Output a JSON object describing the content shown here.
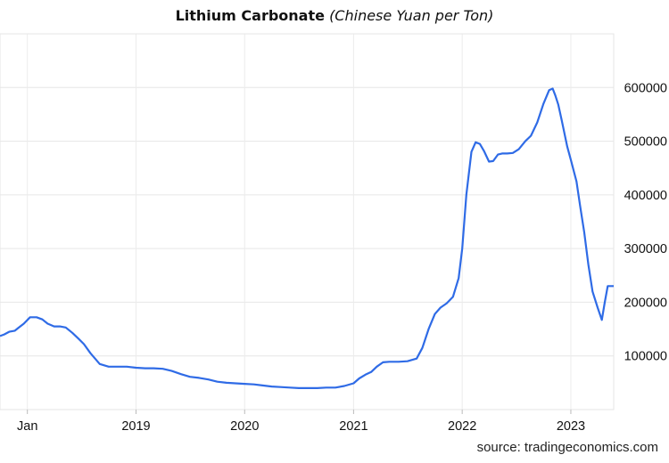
{
  "header": {
    "title": "Lithium Carbonate",
    "subtitle": "(Chinese Yuan per Ton)"
  },
  "footer": {
    "source": "source: tradingeconomics.com"
  },
  "chart_data": {
    "type": "line",
    "title": "Lithium Carbonate",
    "subtitle": "(Chinese Yuan per Ton)",
    "xlabel": "",
    "ylabel": "",
    "ylim": [
      0,
      700000
    ],
    "xlim": [
      "2017-10-01",
      "2023-05-25"
    ],
    "y_axis_position": "right",
    "grid": true,
    "line_color": "#2f6be6",
    "y_ticks": [
      {
        "value": 100000,
        "label": "100000"
      },
      {
        "value": 200000,
        "label": "200000"
      },
      {
        "value": 300000,
        "label": "300000"
      },
      {
        "value": 400000,
        "label": "400000"
      },
      {
        "value": 500000,
        "label": "500000"
      },
      {
        "value": 600000,
        "label": "600000"
      }
    ],
    "x_ticks": [
      {
        "date": "2018-01-01",
        "label": "Jan"
      },
      {
        "date": "2019-01-01",
        "label": "2019"
      },
      {
        "date": "2020-01-01",
        "label": "2020"
      },
      {
        "date": "2021-01-01",
        "label": "2021"
      },
      {
        "date": "2022-01-01",
        "label": "2022"
      },
      {
        "date": "2023-01-01",
        "label": "2023"
      }
    ],
    "series": [
      {
        "x": [
          "2017-10-01",
          "2017-10-15",
          "2017-11-01",
          "2017-11-20",
          "2017-12-01",
          "2017-12-20",
          "2018-01-10",
          "2018-02-01",
          "2018-02-20",
          "2018-03-10",
          "2018-04-01",
          "2018-04-20",
          "2018-05-10",
          "2018-06-01",
          "2018-06-20",
          "2018-07-10",
          "2018-08-01",
          "2018-09-01",
          "2018-10-01",
          "2018-11-01",
          "2018-12-01",
          "2019-01-01",
          "2019-02-01",
          "2019-03-01",
          "2019-04-01",
          "2019-05-01",
          "2019-06-01",
          "2019-07-01",
          "2019-08-01",
          "2019-09-01",
          "2019-10-01",
          "2019-11-01",
          "2019-12-01",
          "2020-01-01",
          "2020-02-01",
          "2020-03-01",
          "2020-04-01",
          "2020-05-01",
          "2020-06-01",
          "2020-07-01",
          "2020-08-01",
          "2020-09-01",
          "2020-10-01",
          "2020-11-01",
          "2020-12-01",
          "2021-01-01",
          "2021-01-20",
          "2021-02-10",
          "2021-03-01",
          "2021-03-20",
          "2021-04-10",
          "2021-05-01",
          "2021-06-01",
          "2021-07-01",
          "2021-08-01",
          "2021-08-20",
          "2021-09-10",
          "2021-10-01",
          "2021-10-20",
          "2021-11-10",
          "2021-12-01",
          "2021-12-20",
          "2022-01-01",
          "2022-01-15",
          "2022-02-01",
          "2022-02-15",
          "2022-03-01",
          "2022-03-15",
          "2022-04-01",
          "2022-04-15",
          "2022-05-01",
          "2022-05-15",
          "2022-06-01",
          "2022-06-20",
          "2022-07-10",
          "2022-08-01",
          "2022-08-20",
          "2022-09-10",
          "2022-10-01",
          "2022-10-20",
          "2022-11-01",
          "2022-11-10",
          "2022-11-20",
          "2022-12-01",
          "2022-12-20",
          "2023-01-01",
          "2023-01-20",
          "2023-02-01",
          "2023-02-15",
          "2023-03-01",
          "2023-03-15",
          "2023-04-01",
          "2023-04-15",
          "2023-04-25",
          "2023-05-05",
          "2023-05-15",
          "2023-05-25"
        ],
        "values": [
          137000,
          140000,
          145000,
          147000,
          152000,
          160000,
          172000,
          172000,
          168000,
          160000,
          155000,
          155000,
          153000,
          143000,
          133000,
          122000,
          105000,
          85000,
          80000,
          80000,
          80000,
          78000,
          77000,
          77000,
          76000,
          72000,
          66000,
          61000,
          59000,
          56000,
          52000,
          50000,
          49000,
          48000,
          47000,
          45000,
          43000,
          42000,
          41000,
          40000,
          40000,
          40000,
          41000,
          41000,
          44000,
          49000,
          58000,
          65000,
          70000,
          80000,
          88000,
          89000,
          89000,
          90000,
          95000,
          115000,
          150000,
          178000,
          190000,
          198000,
          210000,
          245000,
          300000,
          400000,
          480000,
          498000,
          495000,
          482000,
          462000,
          463000,
          475000,
          477000,
          477000,
          478000,
          485000,
          500000,
          510000,
          535000,
          570000,
          595000,
          598000,
          585000,
          568000,
          540000,
          490000,
          465000,
          425000,
          380000,
          330000,
          270000,
          220000,
          190000,
          167000,
          200000,
          230000,
          230000,
          230000
        ]
      }
    ]
  }
}
